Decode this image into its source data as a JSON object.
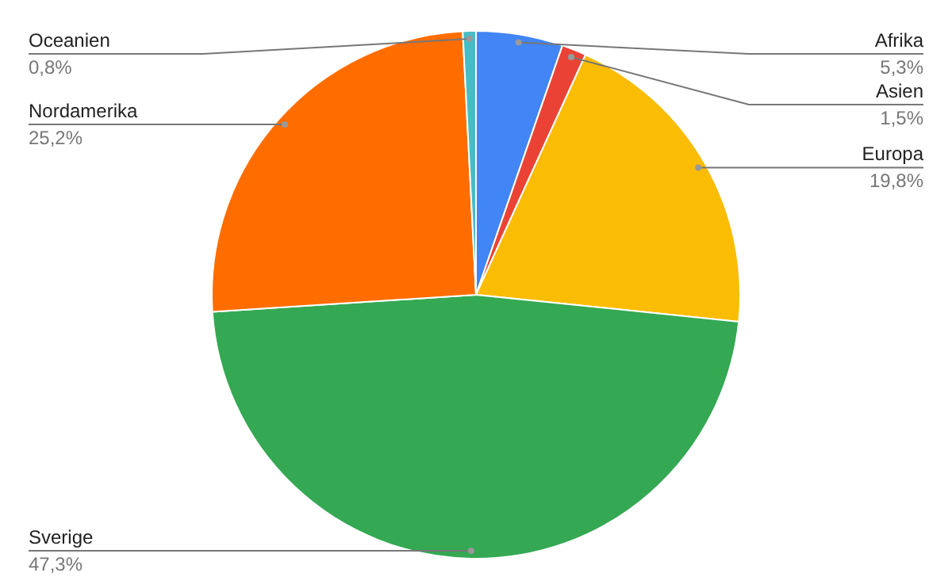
{
  "chart_data": {
    "type": "pie",
    "categories": [
      "Afrika",
      "Asien",
      "Europa",
      "Sverige",
      "Nordamerika",
      "Oceanien"
    ],
    "values": [
      5.3,
      1.5,
      19.8,
      47.3,
      25.2,
      0.8
    ],
    "value_labels": [
      "5,3%",
      "1,5%",
      "19,8%",
      "47,3%",
      "25,2%",
      "0,8%"
    ],
    "colors": [
      "#4285f4",
      "#ea4335",
      "#fbbc04",
      "#34a853",
      "#ff6d01",
      "#46bdc6"
    ],
    "legend": false
  }
}
